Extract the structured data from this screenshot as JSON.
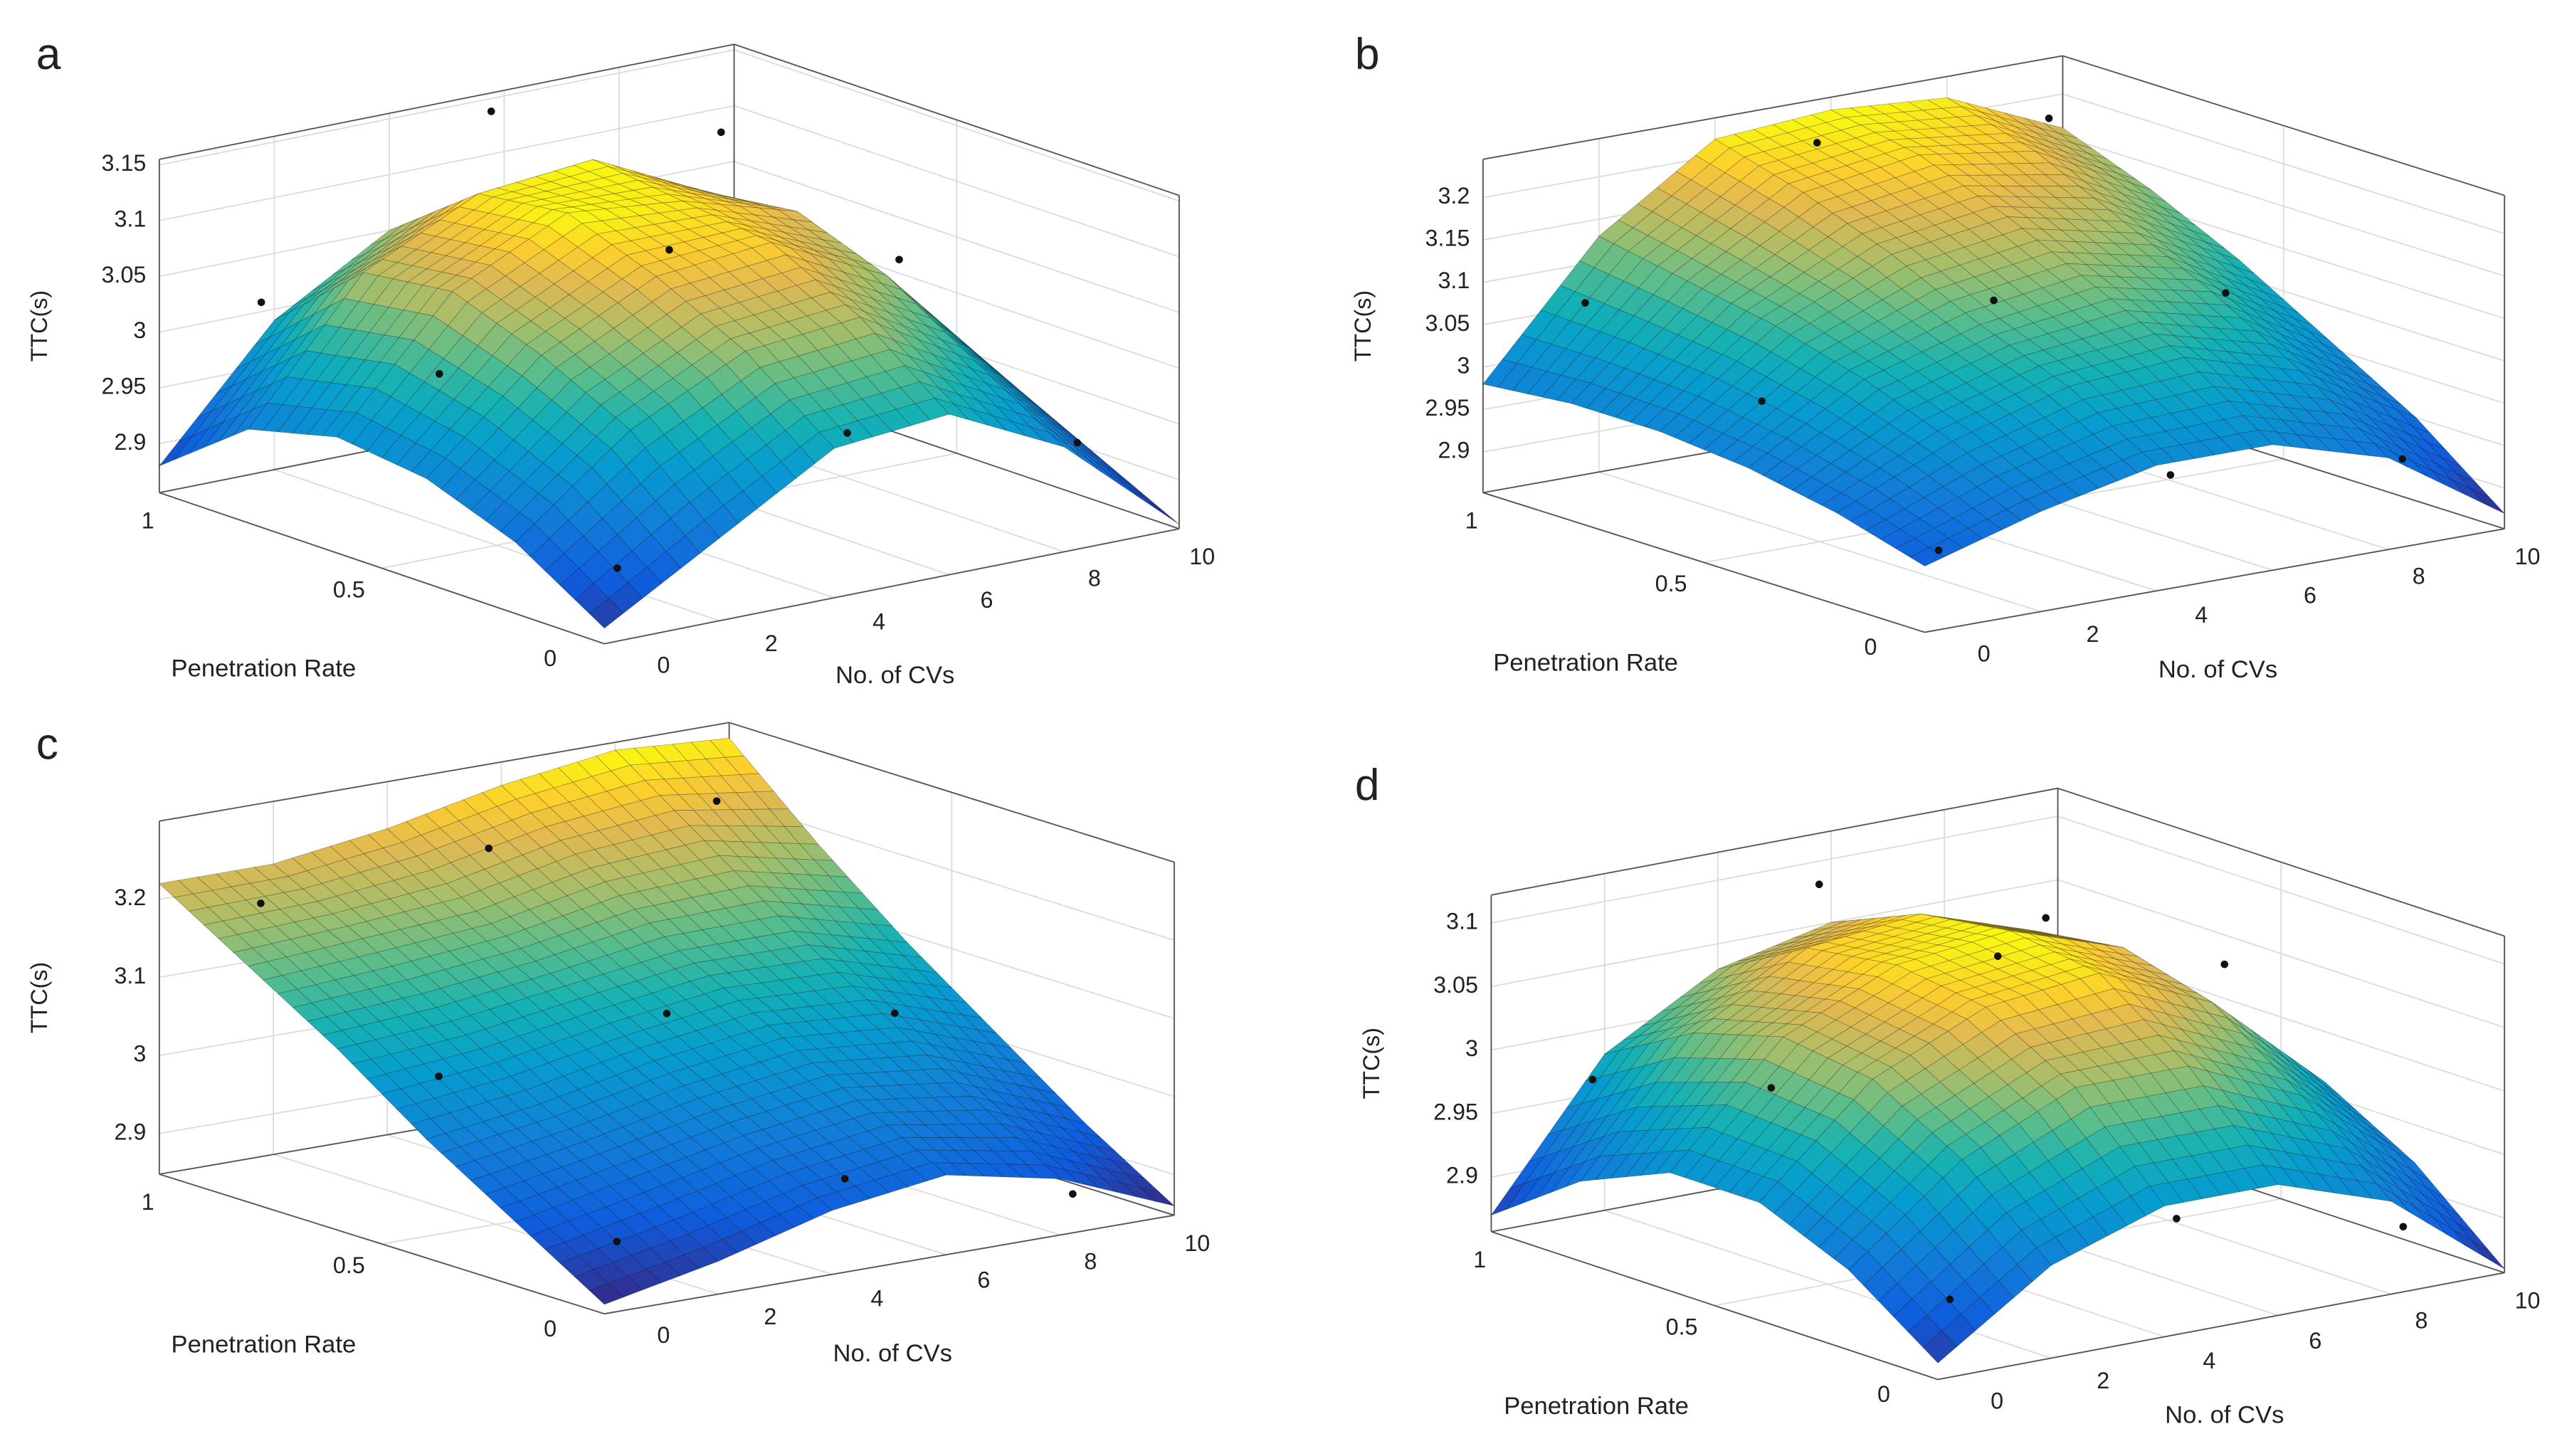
{
  "chart_data": [
    {
      "type": "surface",
      "label": "a",
      "xlabel": "No. of CVs",
      "ylabel": "Penetration Rate",
      "zlabel": "TTC(s)",
      "x": [
        0,
        2,
        4,
        6,
        8,
        10
      ],
      "y": [
        0,
        0.2,
        0.4,
        0.6,
        0.8,
        1
      ],
      "z": [
        [
          2.87,
          2.93,
          2.99,
          3.0,
          2.95,
          2.86
        ],
        [
          2.92,
          3.0,
          3.05,
          3.06,
          3.0,
          2.9
        ],
        [
          2.95,
          3.04,
          3.09,
          3.1,
          3.05,
          2.94
        ],
        [
          2.96,
          3.07,
          3.12,
          3.11,
          3.08,
          2.97
        ],
        [
          2.94,
          3.06,
          3.11,
          3.12,
          3.07,
          2.98
        ],
        [
          2.88,
          2.99,
          3.05,
          3.06,
          3.02,
          2.97
        ]
      ],
      "xlim": [
        0,
        10
      ],
      "ylim": [
        0,
        1
      ],
      "zlim": [
        2.856,
        3.155
      ],
      "xticks": [
        0,
        2,
        4,
        6,
        8,
        10
      ],
      "yticks": [
        0,
        0.5,
        1
      ],
      "zticks": [
        2.9,
        2.95,
        3,
        3.05,
        3.1,
        3.15
      ],
      "grid": true,
      "points": {
        "x": [
          1,
          5,
          9,
          1,
          5,
          9,
          1,
          5,
          9
        ],
        "y": [
          0.1,
          0.1,
          0.1,
          0.5,
          0.5,
          0.5,
          0.9,
          0.9,
          0.9
        ],
        "z": [
          2.9,
          2.98,
          2.93,
          3.02,
          3.09,
          3.04,
          3.03,
          3.16,
          3.1
        ]
      }
    },
    {
      "type": "surface",
      "label": "b",
      "xlabel": "No. of CVs",
      "ylabel": "Penetration Rate",
      "zlabel": "TTC(s)",
      "x": [
        0,
        2,
        4,
        6,
        8,
        10
      ],
      "y": [
        0,
        0.2,
        0.4,
        0.6,
        0.8,
        1
      ],
      "z": [
        [
          2.93,
          2.97,
          3.0,
          3.0,
          2.96,
          2.87
        ],
        [
          2.96,
          3.02,
          3.06,
          3.07,
          3.03,
          2.95
        ],
        [
          2.98,
          3.06,
          3.1,
          3.12,
          3.09,
          3.01
        ],
        [
          2.99,
          3.09,
          3.15,
          3.17,
          3.14,
          3.07
        ],
        [
          2.99,
          3.11,
          3.19,
          3.21,
          3.19,
          3.12
        ],
        [
          2.98,
          3.13,
          3.22,
          3.23,
          3.22,
          3.16
        ]
      ],
      "xlim": [
        0,
        10
      ],
      "ylim": [
        0,
        1
      ],
      "zlim": [
        2.852,
        3.245
      ],
      "xticks": [
        0,
        2,
        4,
        6,
        8,
        10
      ],
      "yticks": [
        0,
        0.5,
        1
      ],
      "zticks": [
        2.9,
        2.95,
        3,
        3.05,
        3.1,
        3.15,
        3.2
      ],
      "grid": true,
      "points": {
        "x": [
          1,
          5,
          9,
          1,
          5,
          9,
          1,
          5,
          9
        ],
        "y": [
          0.1,
          0.1,
          0.1,
          0.5,
          0.5,
          0.5,
          0.9,
          0.9,
          0.9
        ],
        "z": [
          2.92,
          2.96,
          2.93,
          3.03,
          3.1,
          3.06,
          3.08,
          3.22,
          3.2
        ]
      }
    },
    {
      "type": "surface",
      "label": "c",
      "xlabel": "No. of CVs",
      "ylabel": "Penetration Rate",
      "zlabel": "TTC(s)",
      "x": [
        0,
        2,
        4,
        6,
        8,
        10
      ],
      "y": [
        0,
        0.2,
        0.4,
        0.6,
        0.8,
        1
      ],
      "z": [
        [
          2.86,
          2.89,
          2.93,
          2.95,
          2.92,
          2.86
        ],
        [
          2.93,
          2.96,
          2.99,
          3.01,
          2.99,
          2.93
        ],
        [
          3.0,
          3.02,
          3.05,
          3.07,
          3.06,
          3.01
        ],
        [
          3.08,
          3.09,
          3.11,
          3.13,
          3.13,
          3.09
        ],
        [
          3.15,
          3.16,
          3.17,
          3.2,
          3.21,
          3.18
        ],
        [
          3.22,
          3.22,
          3.24,
          3.27,
          3.29,
          3.28
        ]
      ],
      "xlim": [
        0,
        10
      ],
      "ylim": [
        0,
        1
      ],
      "zlim": [
        2.848,
        3.3
      ],
      "xticks": [
        0,
        2,
        4,
        6,
        8,
        10
      ],
      "yticks": [
        0,
        0.5,
        1
      ],
      "zticks": [
        2.9,
        3,
        3.1,
        3.2
      ],
      "grid": true,
      "points": {
        "x": [
          1,
          5,
          9,
          1,
          5,
          9,
          1,
          5,
          9
        ],
        "y": [
          0.1,
          0.1,
          0.1,
          0.5,
          0.5,
          0.5,
          0.9,
          0.9,
          0.9
        ],
        "z": [
          2.91,
          2.94,
          2.87,
          3.05,
          3.08,
          3.03,
          3.2,
          3.22,
          3.23
        ]
      }
    },
    {
      "type": "surface",
      "label": "d",
      "xlabel": "No. of CVs",
      "ylabel": "Penetration Rate",
      "zlabel": "TTC(s)",
      "x": [
        0,
        2,
        4,
        6,
        8,
        10
      ],
      "y": [
        0,
        0.2,
        0.4,
        0.6,
        0.8,
        1
      ],
      "z": [
        [
          2.87,
          2.93,
          2.96,
          2.96,
          2.93,
          2.86
        ],
        [
          2.92,
          2.99,
          3.03,
          3.03,
          2.99,
          2.92
        ],
        [
          2.95,
          3.03,
          3.07,
          3.08,
          3.04,
          2.96
        ],
        [
          2.95,
          3.04,
          3.08,
          3.09,
          3.06,
          2.98
        ],
        [
          2.92,
          3.02,
          3.07,
          3.08,
          3.05,
          2.98
        ],
        [
          2.87,
          2.98,
          3.03,
          3.05,
          3.02,
          2.95
        ]
      ],
      "xlim": [
        0,
        10
      ],
      "ylim": [
        0,
        1
      ],
      "zlim": [
        2.857,
        3.122
      ],
      "xticks": [
        0,
        2,
        4,
        6,
        8,
        10
      ],
      "yticks": [
        0,
        0.5,
        1
      ],
      "zticks": [
        2.9,
        2.95,
        3,
        3.05,
        3.1
      ],
      "grid": true,
      "points": {
        "x": [
          1,
          5,
          9,
          1,
          5,
          9,
          1,
          5,
          9
        ],
        "y": [
          0.1,
          0.1,
          0.1,
          0.5,
          0.5,
          0.5,
          0.9,
          0.9,
          0.9
        ],
        "z": [
          2.9,
          2.93,
          2.89,
          3.02,
          3.09,
          3.05,
          2.98,
          3.1,
          3.04
        ]
      }
    }
  ]
}
